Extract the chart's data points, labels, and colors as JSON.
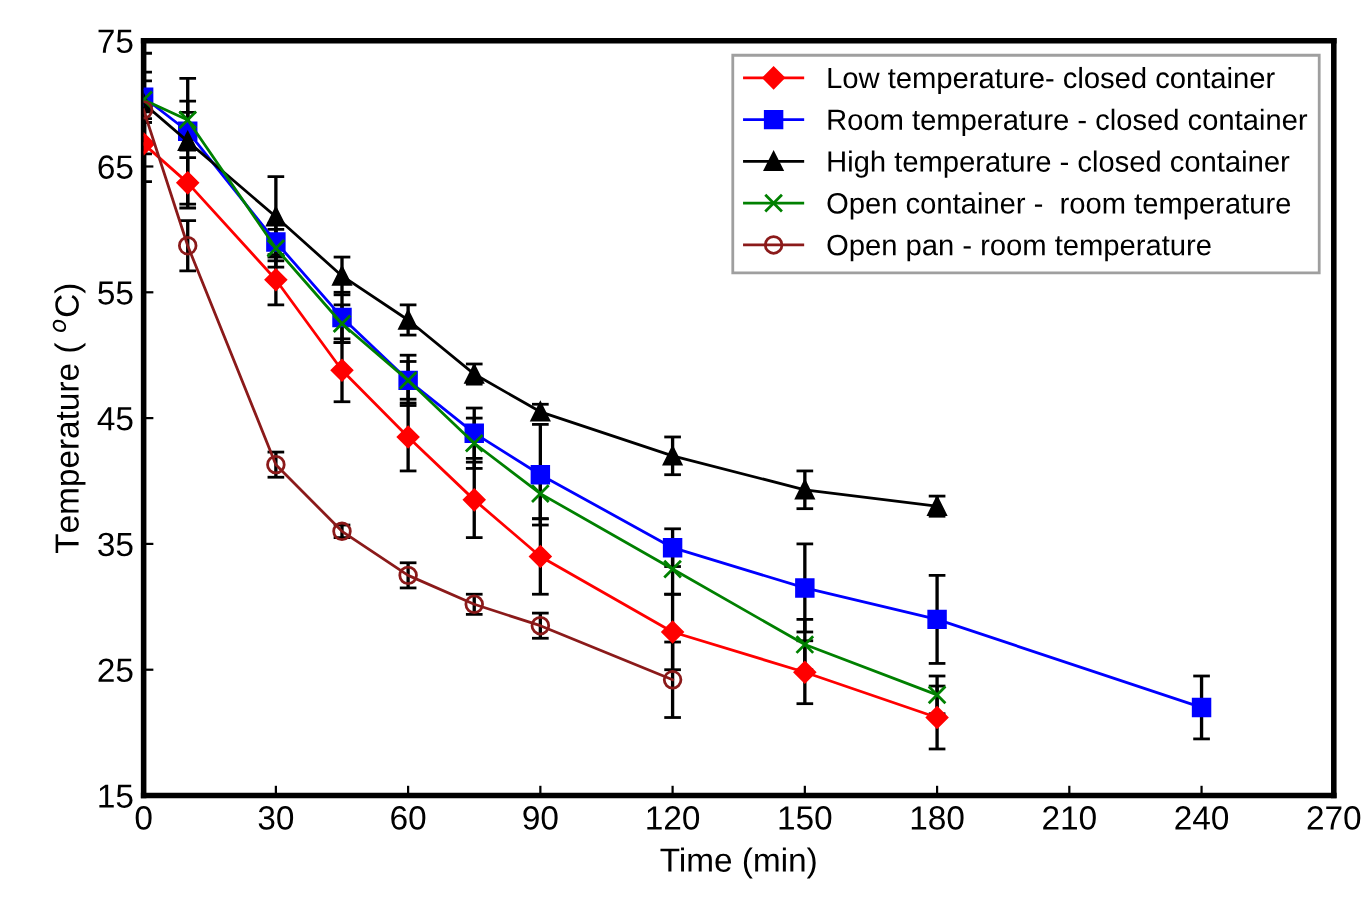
{
  "chart_data": {
    "type": "line",
    "xlabel": "Time (min)",
    "ylabel": "Temperature ( $^{o}$C)",
    "xlim": [
      0,
      270
    ],
    "xticks": [
      0,
      30,
      60,
      90,
      120,
      150,
      180,
      210,
      240,
      270
    ],
    "ylim": [
      15,
      75
    ],
    "yticks": [
      15,
      25,
      35,
      45,
      55,
      65,
      75
    ],
    "grid": false,
    "legend": "top right",
    "series": [
      {
        "name": "Low temperature- closed container",
        "color": "#ff0000",
        "marker": "diamond",
        "x": [
          0,
          10,
          30,
          45,
          60,
          75,
          90,
          120,
          150,
          180
        ],
        "values": [
          66.8,
          63.7,
          56,
          48.8,
          43.5,
          38.5,
          34,
          28,
          24.8,
          21.2
        ],
        "errors": [
          3,
          2,
          2,
          2.5,
          2.7,
          3,
          3,
          3,
          2.5,
          2.5
        ]
      },
      {
        "name": "Room temperature - closed container",
        "color": "#0000ff",
        "marker": "square",
        "x": [
          0,
          10,
          30,
          45,
          60,
          75,
          90,
          120,
          150,
          180,
          240
        ],
        "values": [
          70.5,
          67.8,
          59,
          53,
          48,
          43.8,
          40.5,
          34.7,
          31.5,
          29,
          22
        ],
        "errors": [
          2,
          1.5,
          1.5,
          2,
          1.5,
          2,
          4,
          1.5,
          3.5,
          3.5,
          2.5
        ]
      },
      {
        "name": "High temperature - closed container",
        "color": "#000000",
        "marker": "triangle",
        "x": [
          0,
          10,
          30,
          45,
          60,
          75,
          90,
          120,
          150,
          180
        ],
        "values": [
          70,
          67,
          61,
          56.3,
          52.8,
          48.5,
          45.5,
          42,
          39.3,
          38
        ],
        "errors": [
          4,
          5,
          3.2,
          1.5,
          1.2,
          0.8,
          0.6,
          1.5,
          1.5,
          0.8
        ]
      },
      {
        "name": "Open container -  room temperature",
        "color": "#008000",
        "marker": "cross",
        "x": [
          0,
          10,
          30,
          45,
          60,
          75,
          90,
          120,
          150,
          180
        ],
        "values": [
          70.3,
          68.7,
          58.5,
          52.5,
          48,
          43,
          39,
          33,
          27,
          23
        ],
        "errors": [
          1.5,
          1.5,
          1.5,
          1.5,
          2,
          2,
          2,
          2,
          2,
          1.5
        ]
      },
      {
        "name": "Open pan - room temperature",
        "color": "#8b1a1a",
        "marker": "circle",
        "x": [
          0,
          10,
          30,
          45,
          60,
          75,
          90,
          120
        ],
        "values": [
          69.5,
          58.7,
          41.3,
          36,
          32.5,
          30.2,
          28.5,
          24.2
        ],
        "errors": [
          1,
          2,
          1,
          0.5,
          1,
          0.8,
          1,
          3
        ]
      }
    ]
  }
}
